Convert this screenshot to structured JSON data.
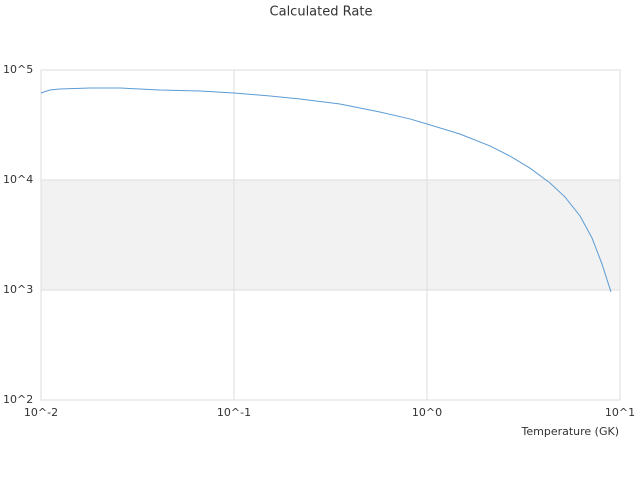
{
  "chart_data": {
    "type": "line",
    "title": "Calculated Rate",
    "x_label": "Temperature (GK)",
    "x_log": true,
    "y_log": true,
    "grid_bands": true,
    "xlim": [
      0.01,
      10
    ],
    "ylim": [
      100,
      100000
    ],
    "xticks": [
      {
        "value": 0.01,
        "label": "10^-2"
      },
      {
        "value": 0.1,
        "label": "10^-1"
      },
      {
        "value": 1,
        "label": "10^0"
      },
      {
        "value": 10,
        "label": "10^1"
      }
    ],
    "yticks": [
      {
        "value": 100,
        "label": "10^2"
      },
      {
        "value": 1000,
        "label": "10^3"
      },
      {
        "value": 10000,
        "label": "10^4"
      },
      {
        "value": 100000,
        "label": "10^5"
      }
    ],
    "x": [
      0.01,
      0.0111,
      0.0125,
      0.018,
      0.0257,
      0.0414,
      0.0667,
      0.1,
      0.154,
      0.22,
      0.354,
      0.57,
      0.816,
      1,
      1.48,
      2.12,
      2.69,
      3.42,
      4.34,
      5.19,
      6.21,
      7.16,
      8.07,
      8.98
    ],
    "series": [
      {
        "color": "#5b9bd5",
        "values": [
          61800,
          65800,
          67200,
          68600,
          68600,
          65800,
          64400,
          61800,
          58100,
          54500,
          49100,
          41500,
          35900,
          32300,
          26200,
          20400,
          16500,
          12800,
          9400,
          7000,
          4710,
          2970,
          1720,
          960
        ]
      }
    ]
  }
}
